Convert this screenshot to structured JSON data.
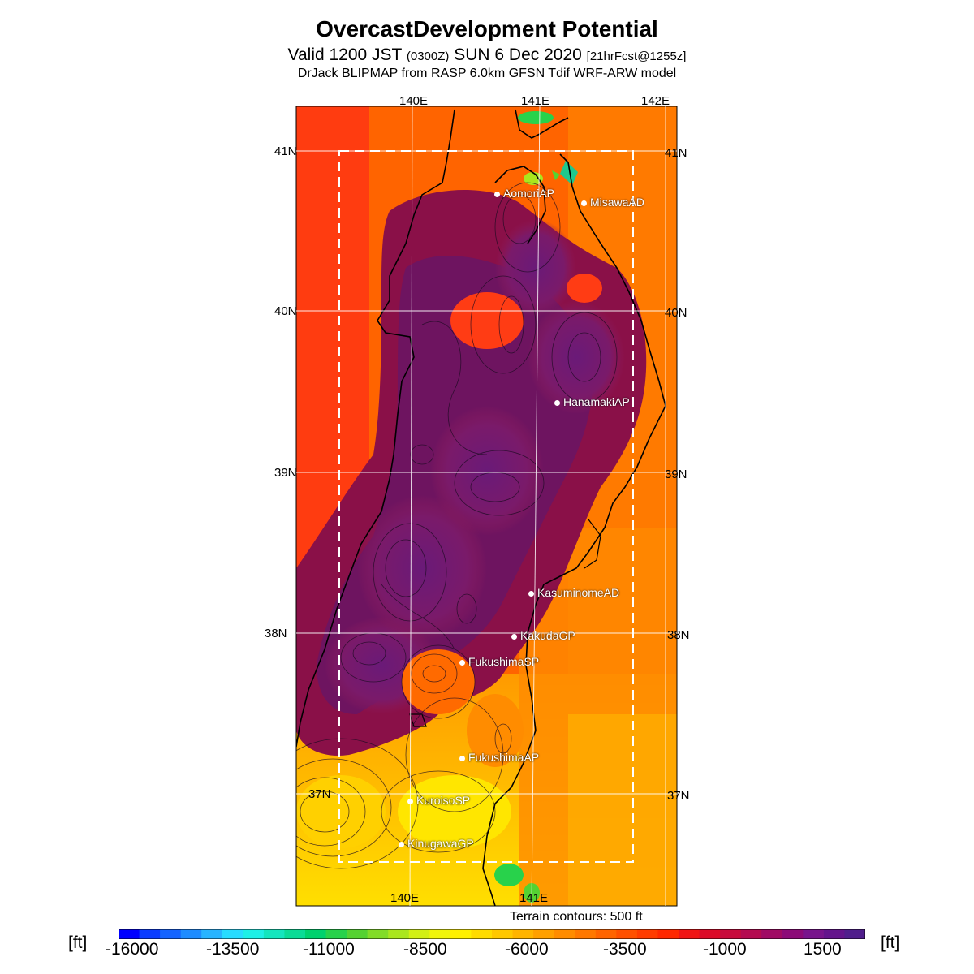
{
  "title": "OvercastDevelopment Potential",
  "subtitle": {
    "valid_a": "Valid 1200 JST",
    "zulu": "(0300Z)",
    "valid_b": "SUN 6 Dec 2020",
    "fcst": "[21hrFcst@1255z]"
  },
  "model_line": "DrJack BLIPMAP from RASP 6.0km GFSN Tdif WRF-ARW model",
  "map": {
    "lon_top": [
      "140E",
      "141E",
      "142E"
    ],
    "lon_bottom": [
      "140E",
      "141E"
    ],
    "lat_left": [
      "41N",
      "40N",
      "39N",
      "38N",
      "37N"
    ],
    "lat_right": [
      "41N",
      "40N",
      "39N",
      "38N",
      "37N"
    ],
    "stations": [
      "AomoriAP",
      "MisawaAD",
      "HanamakiAP",
      "KasuminomeAD",
      "KakudaGP",
      "FukushimaSP",
      "FukushimaAP",
      "KuroisoSP",
      "KinugawaGP"
    ]
  },
  "terrain_note": "Terrain contours: 500 ft",
  "colorbar": {
    "unit_left": "[ft]",
    "unit_right": "[ft]",
    "ticks": [
      "-16000",
      "-13500",
      "-11000",
      "-8500",
      "-6000",
      "-3500",
      "-1000",
      "1500"
    ],
    "colors": [
      "#0000ff",
      "#0a3cff",
      "#1464ff",
      "#1e8cff",
      "#28b4ff",
      "#28dcff",
      "#1ef0e6",
      "#14e6be",
      "#0adc96",
      "#00d26e",
      "#28d24b",
      "#55d232",
      "#82dc28",
      "#aae61e",
      "#d2f014",
      "#f0f50a",
      "#fff000",
      "#ffdc00",
      "#ffc800",
      "#ffb400",
      "#ffa000",
      "#ff8c00",
      "#ff7800",
      "#ff6400",
      "#ff5000",
      "#ff3c00",
      "#ff2800",
      "#f01414",
      "#dc0a28",
      "#c80a3c",
      "#b40a50",
      "#a00a64",
      "#8c0a78",
      "#78148c",
      "#64148c",
      "#501e8c"
    ]
  }
}
